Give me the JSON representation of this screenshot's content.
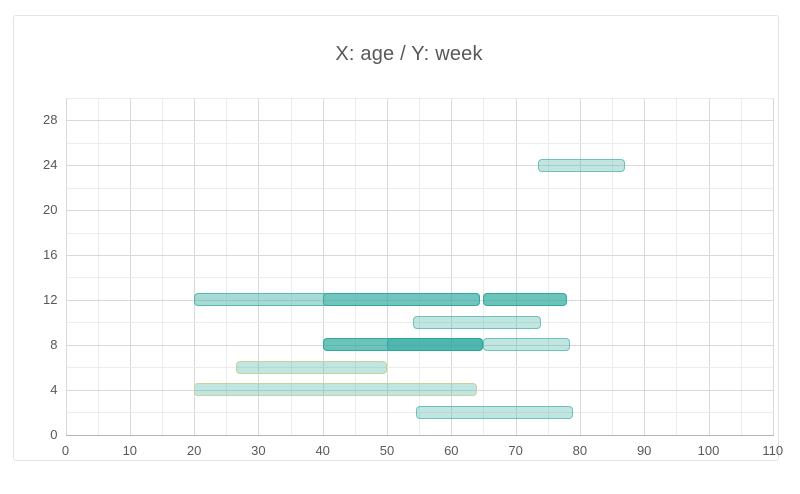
{
  "chart_data": {
    "type": "bar",
    "subtype": "horizontal-range-gantt",
    "title": "X: age / Y: week",
    "xlabel": "age",
    "ylabel": "week",
    "xlim": [
      0,
      110
    ],
    "ylim": [
      0,
      30
    ],
    "x_tick_labels": [
      0,
      10,
      20,
      30,
      40,
      50,
      60,
      70,
      80,
      90,
      100,
      110
    ],
    "y_tick_labels": [
      0,
      4,
      8,
      12,
      16,
      20,
      24,
      28
    ],
    "x_minor_step": 5,
    "y_minor_step": 2,
    "grid": "on",
    "legend": "none",
    "bars": [
      {
        "week": 24,
        "age_start": 73.5,
        "age_end": 87,
        "shade": "light",
        "border": "teal"
      },
      {
        "week": 12,
        "age_start": 20,
        "age_end": 64.5,
        "shade": "medium",
        "border": "teal"
      },
      {
        "week": 12,
        "age_start": 40,
        "age_end": 64.5,
        "shade": "overlay",
        "border": "teal"
      },
      {
        "week": 12,
        "age_start": 65,
        "age_end": 78,
        "shade": "dark",
        "border": "teal"
      },
      {
        "week": 10,
        "age_start": 54,
        "age_end": 74,
        "shade": "light",
        "border": "teal"
      },
      {
        "week": 8,
        "age_start": 40,
        "age_end": 65,
        "shade": "dark",
        "border": "teal"
      },
      {
        "week": 8,
        "age_start": 50,
        "age_end": 65,
        "shade": "overlay",
        "border": "teal"
      },
      {
        "week": 8,
        "age_start": 65,
        "age_end": 78.5,
        "shade": "light",
        "border": "teal"
      },
      {
        "week": 6,
        "age_start": 26.5,
        "age_end": 50,
        "shade": "light",
        "border": "green"
      },
      {
        "week": 4,
        "age_start": 20,
        "age_end": 64,
        "shade": "light",
        "border": "green"
      },
      {
        "week": 2,
        "age_start": 54.5,
        "age_end": 79,
        "shade": "light",
        "border": "teal"
      }
    ],
    "colors": {
      "accent_teal": "#4db6ac",
      "bar_border_teal": "#26a69a",
      "bar_border_green": "#c3d49a",
      "grid_minor": "#ececec",
      "grid_major": "#d9d9d9",
      "axis_line": "#b3b3b3",
      "text": "#595959",
      "card_border": "#e3e3e3",
      "background": "#ffffff"
    }
  }
}
